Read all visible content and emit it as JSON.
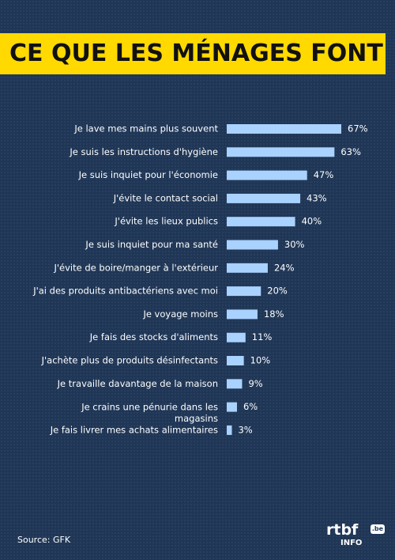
{
  "title": "CE QUE LES MÉNAGES FONT",
  "source": "Source: GFK",
  "logo": {
    "main": "rtbf",
    "badge": ".be",
    "sub": "INFO"
  },
  "colors": {
    "background": "#1f3656",
    "title_band": "#ffd900",
    "bar": "#a9d2ff"
  },
  "chart_data": {
    "type": "bar",
    "orientation": "horizontal",
    "categories": [
      "Je lave mes mains plus souvent",
      "Je suis les instructions d'hygiène",
      "Je suis inquiet pour l'économie",
      "J'évite le contact social",
      "J'évite les lieux publics",
      "Je suis inquiet pour ma santé",
      "J'évite de boire/manger à l'extérieur",
      "J'ai des produits antibactériens avec moi",
      "Je voyage moins",
      "Je fais des stocks d'aliments",
      "J'achète plus de produits désinfectants",
      "Je travaille davantage de la maison",
      "Je crains une pénurie dans les magasins",
      "Je fais livrer mes achats alimentaires"
    ],
    "values": [
      67,
      63,
      47,
      43,
      40,
      30,
      24,
      20,
      18,
      11,
      10,
      9,
      6,
      3
    ],
    "value_labels": [
      "67%",
      "63%",
      "47%",
      "43%",
      "40%",
      "30%",
      "24%",
      "20%",
      "18%",
      "11%",
      "10%",
      "9%",
      "6%",
      "3%"
    ],
    "unit": "%",
    "grid": false,
    "legend": "none"
  }
}
